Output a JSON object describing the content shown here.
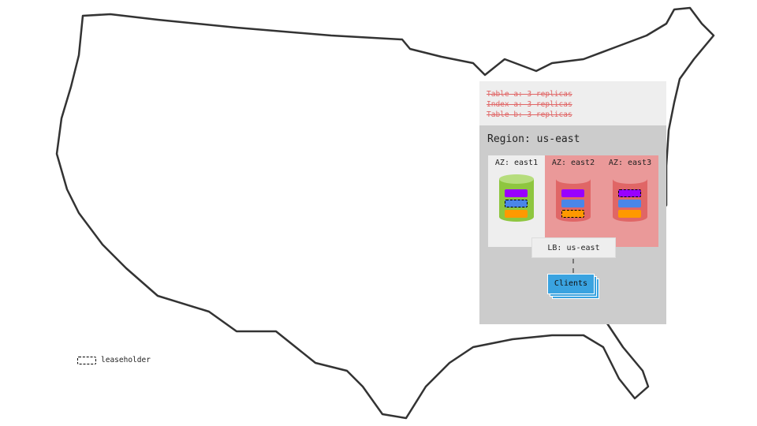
{
  "replica_notes": [
    "Table a: 3 replicas",
    "Index a: 3 replicas",
    "Table b: 3 replicas"
  ],
  "region": {
    "label": "Region: us-east"
  },
  "azs": [
    {
      "label": "AZ: east1",
      "status": "healthy",
      "bg": "#eeeeee",
      "db_color": "#8ec63f",
      "leaseholder": "blue"
    },
    {
      "label": "AZ: east2",
      "status": "down",
      "bg": "#ea9999",
      "db_color": "#e06666",
      "leaseholder": "orange"
    },
    {
      "label": "AZ: east3",
      "status": "down",
      "bg": "#ea9999",
      "db_color": "#e06666",
      "leaseholder": "purple"
    }
  ],
  "ranges": {
    "purple": "#9900ff",
    "blue": "#4a86e8",
    "orange": "#ff9900"
  },
  "load_balancer": {
    "label": "LB: us-east"
  },
  "clients": {
    "label": "Clients"
  },
  "legend": {
    "label": "leaseholder"
  }
}
